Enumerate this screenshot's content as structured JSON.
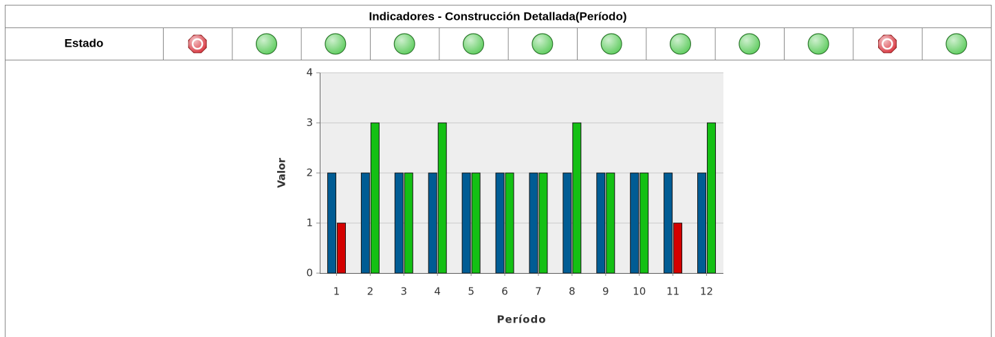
{
  "header": {
    "title": "Indicadores - Construcción Detallada(Período)"
  },
  "estado": {
    "label": "Estado",
    "colors": [
      "#d8323c",
      "#5ccb5c",
      "#5ccb5c",
      "#5ccb5c",
      "#5ccb5c",
      "#5ccb5c",
      "#5ccb5c",
      "#5ccb5c",
      "#5ccb5c",
      "#5ccb5c",
      "#d8323c",
      "#5ccb5c"
    ]
  },
  "chart_data": {
    "type": "bar",
    "xlabel": "Período",
    "ylabel": "Valor",
    "categories": [
      "1",
      "2",
      "3",
      "4",
      "5",
      "6",
      "7",
      "8",
      "9",
      "10",
      "11",
      "12"
    ],
    "series": [
      {
        "color": "#005c94",
        "values": [
          2,
          2,
          2,
          2,
          2,
          2,
          2,
          2,
          2,
          2,
          2,
          2
        ]
      },
      {
        "colors": [
          "#d40000",
          "#14c014",
          "#14c014",
          "#14c014",
          "#14c014",
          "#14c014",
          "#14c014",
          "#14c014",
          "#14c014",
          "#14c014",
          "#d40000",
          "#14c014"
        ],
        "values": [
          1,
          3,
          2,
          3,
          2,
          2,
          2,
          3,
          2,
          2,
          1,
          3
        ]
      }
    ],
    "ylim": [
      0,
      4
    ],
    "yticks": [
      0,
      1,
      2,
      3,
      4
    ],
    "grid": true
  }
}
